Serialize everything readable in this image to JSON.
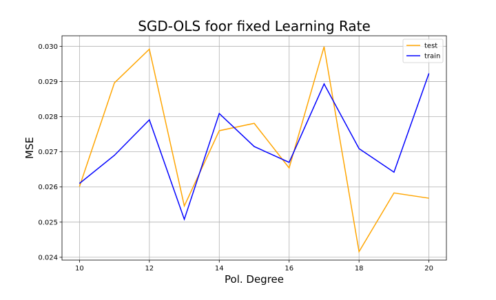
{
  "chart_data": {
    "type": "line",
    "title": "SGD-OLS foor fixed Learning Rate",
    "xlabel": "Pol. Degree",
    "ylabel": "MSE",
    "x": [
      10,
      11,
      12,
      13,
      14,
      15,
      16,
      17,
      18,
      19,
      20
    ],
    "xlim": [
      9.5,
      20.5
    ],
    "ylim": [
      0.02392,
      0.0303
    ],
    "xticks": [
      10,
      12,
      14,
      16,
      18,
      20
    ],
    "xtick_labels": [
      "10",
      "12",
      "14",
      "16",
      "18",
      "20"
    ],
    "yticks": [
      0.024,
      0.025,
      0.026,
      0.027,
      0.028,
      0.029,
      0.03
    ],
    "ytick_labels": [
      "0.024",
      "0.025",
      "0.026",
      "0.027",
      "0.028",
      "0.029",
      "0.030"
    ],
    "grid": true,
    "legend_position": "top-right",
    "series": [
      {
        "name": "test",
        "color": "#ffa500",
        "values": [
          0.02601,
          0.02896,
          0.02992,
          0.02546,
          0.0276,
          0.02781,
          0.02654,
          0.02999,
          0.02416,
          0.02583,
          0.02568
        ]
      },
      {
        "name": "train",
        "color": "#0000ff",
        "values": [
          0.0261,
          0.0269,
          0.02791,
          0.02508,
          0.02809,
          0.02715,
          0.0267,
          0.02893,
          0.02709,
          0.02642,
          0.02923
        ]
      }
    ]
  }
}
